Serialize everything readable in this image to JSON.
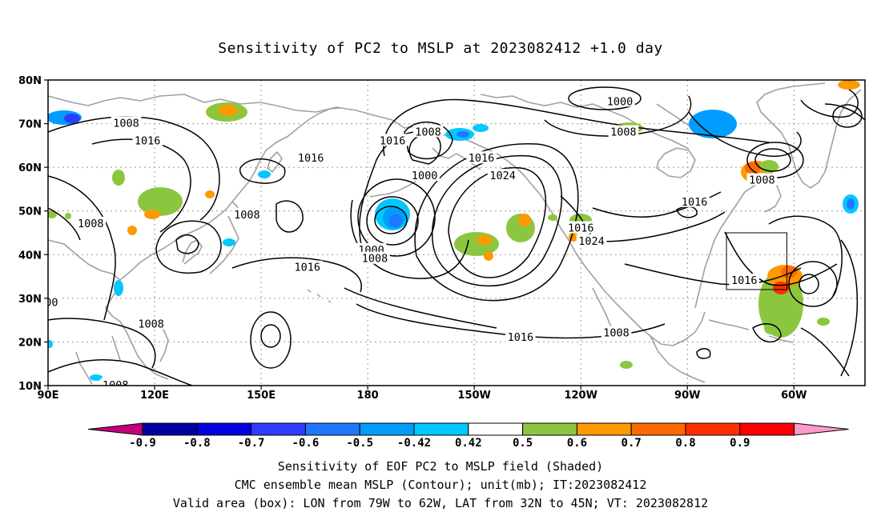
{
  "title": "Sensitivity of PC2 to MSLP at 2023082412 +1.0 day",
  "map": {
    "lat_labels": [
      "80N",
      "70N",
      "60N",
      "50N",
      "40N",
      "30N",
      "20N",
      "10N"
    ],
    "lon_labels": [
      "90E",
      "120E",
      "150E",
      "180",
      "150W",
      "120W",
      "90W",
      "60W"
    ],
    "valid_box": {
      "lon_range": [
        -79,
        -62
      ],
      "lat_range": [
        32,
        45
      ]
    },
    "contour_labels": [
      {
        "text": "1008",
        "lon": 112,
        "lat": 70
      },
      {
        "text": "1016",
        "lon": 118,
        "lat": 66
      },
      {
        "text": "1016",
        "lon": 164,
        "lat": 62
      },
      {
        "text": "1016",
        "lon": 187,
        "lat": 66
      },
      {
        "text": "1008",
        "lon": 197,
        "lat": 68
      },
      {
        "text": "1000",
        "lon": 196,
        "lat": 58
      },
      {
        "text": "1016",
        "lon": 212,
        "lat": 62
      },
      {
        "text": "1024",
        "lon": 218,
        "lat": 58
      },
      {
        "text": "1000",
        "lon": 251,
        "lat": 75
      },
      {
        "text": "1008",
        "lon": 252,
        "lat": 68
      },
      {
        "text": "1016",
        "lon": 272,
        "lat": 52
      },
      {
        "text": "1008",
        "lon": 291,
        "lat": 57
      },
      {
        "text": "1016",
        "lon": 240,
        "lat": 46
      },
      {
        "text": "1024",
        "lon": 243,
        "lat": 43
      },
      {
        "text": "1008",
        "lon": 146,
        "lat": 49
      },
      {
        "text": "1008",
        "lon": 102,
        "lat": 47
      },
      {
        "text": "1016",
        "lon": 163,
        "lat": 37
      },
      {
        "text": "1000",
        "lon": 181,
        "lat": 41
      },
      {
        "text": "1008",
        "lon": 182,
        "lat": 39
      },
      {
        "text": "1016",
        "lon": 223,
        "lat": 21
      },
      {
        "text": "1008",
        "lon": 250,
        "lat": 22
      },
      {
        "text": "1008",
        "lon": 119,
        "lat": 24
      },
      {
        "text": "1008",
        "lon": 109,
        "lat": 10
      },
      {
        "text": "1016",
        "lon": 286,
        "lat": 34
      },
      {
        "text": "00",
        "lon": 91,
        "lat": 29
      }
    ]
  },
  "colorbar": {
    "labels": [
      "-0.9",
      "-0.8",
      "-0.7",
      "-0.6",
      "-0.5",
      "-0.42",
      "0.42",
      "0.5",
      "0.6",
      "0.7",
      "0.8",
      "0.9"
    ],
    "colors": [
      "#c2007b",
      "#0000a0",
      "#0000e0",
      "#2f3cff",
      "#1f78ff",
      "#009dff",
      "#00c8ff",
      "#ffffff",
      "#8cc63f",
      "#ff9900",
      "#ff6a00",
      "#ff3000",
      "#ff0000",
      "#ff99cc"
    ]
  },
  "captions": {
    "line1": "Sensitivity of EOF PC2 to MSLP field (Shaded)",
    "line2": "CMC ensemble mean MSLP (Contour); unit(mb); IT:2023082412",
    "line3": "Valid area (box): LON from 79W to 62W, LAT from 32N to 45N; VT: 2023082812"
  }
}
